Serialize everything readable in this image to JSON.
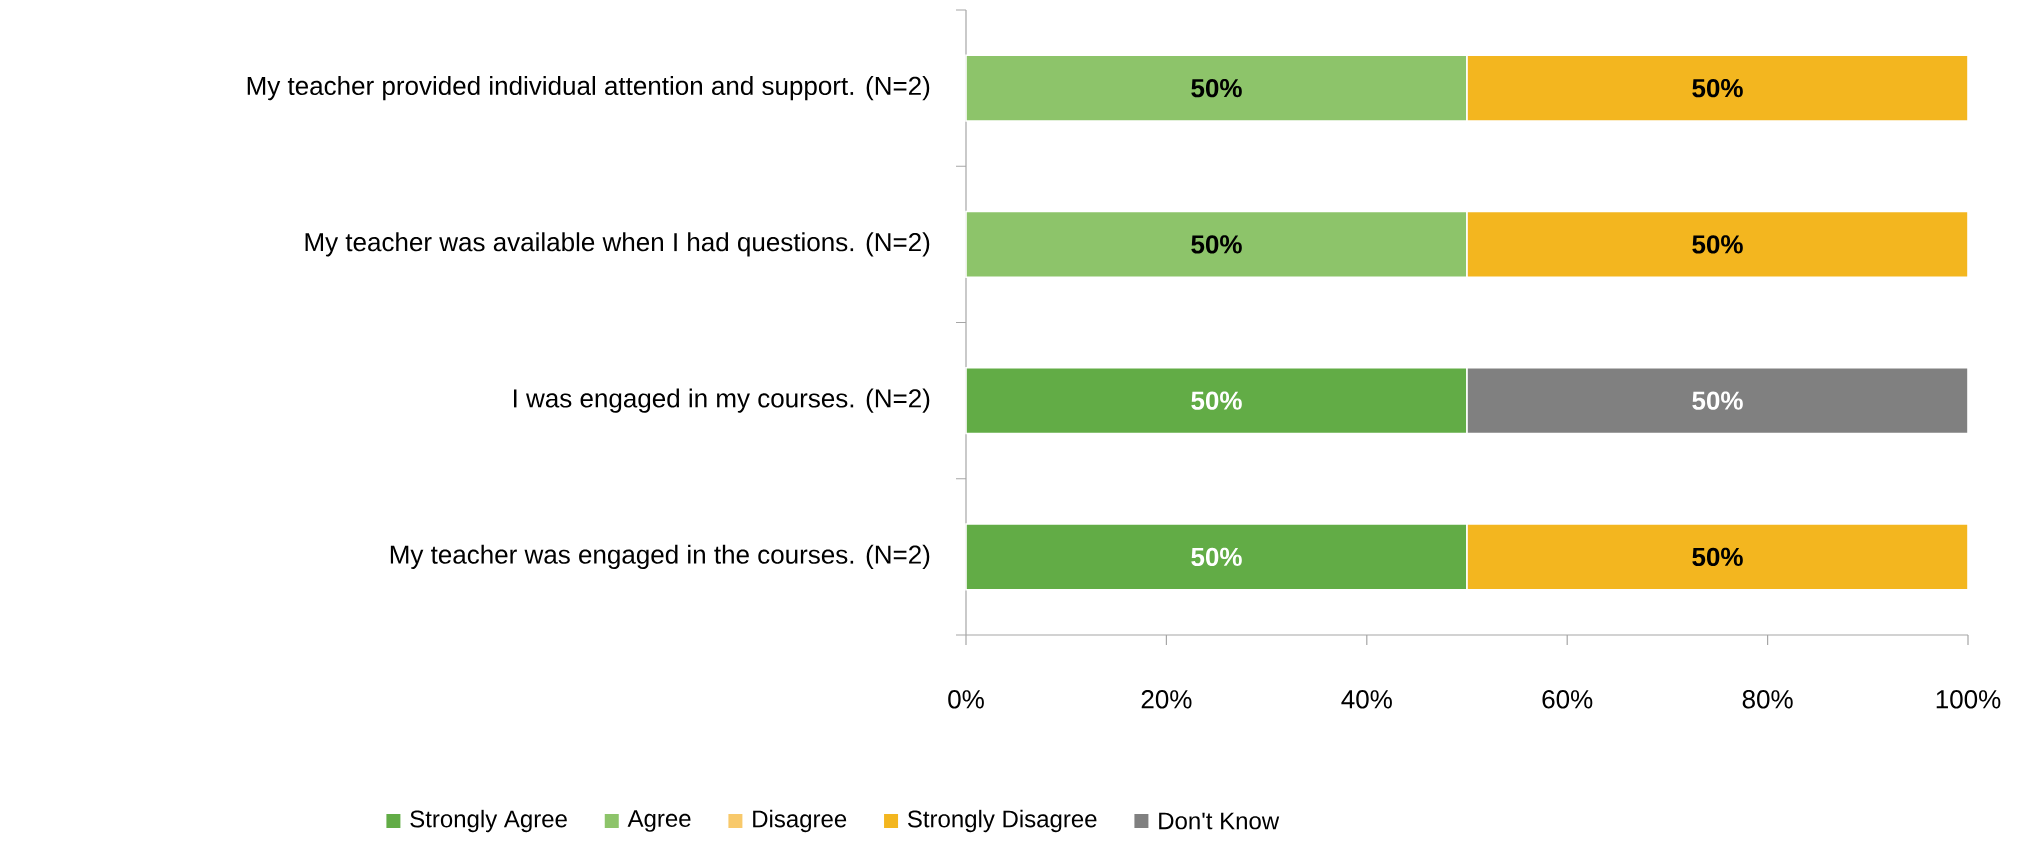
{
  "chart_data": {
    "type": "bar",
    "orientation": "horizontal",
    "stacked": true,
    "legend": "bottom",
    "grid": false,
    "categories": [
      "My teacher provided individual attention and support. (N=2)",
      "My teacher was available when I had questions. (N=2)",
      "I was engaged in my courses. (N=2)",
      "My teacher was engaged in the courses. (N=2)"
    ],
    "series": [
      {
        "name": "Strongly Agree",
        "color": "#62ac46",
        "values": [
          null,
          null,
          50,
          50
        ],
        "value_labels": [
          null,
          null,
          "50%",
          "50%"
        ]
      },
      {
        "name": "Agree",
        "color": "#8dc46a",
        "values": [
          50,
          50,
          null,
          null
        ],
        "value_labels": [
          "50%",
          "50%",
          null,
          null
        ]
      },
      {
        "name": "Disagree",
        "color": "#f8c96b",
        "values": [
          null,
          null,
          null,
          null
        ],
        "value_labels": [
          null,
          null,
          null,
          null
        ]
      },
      {
        "name": "Strongly Disagree",
        "color": "#f3b61f",
        "values": [
          50,
          50,
          null,
          50
        ],
        "value_labels": [
          "50%",
          "50%",
          null,
          "50%"
        ]
      },
      {
        "name": "Don't Know",
        "color": "#808080",
        "values": [
          null,
          null,
          50,
          null
        ],
        "value_labels": [
          null,
          null,
          "50%",
          null
        ]
      }
    ],
    "xlim": [
      0,
      100
    ],
    "xticks": [
      {
        "value": 0,
        "label": "0%"
      },
      {
        "value": 20,
        "label": "20%"
      },
      {
        "value": 40,
        "label": "40%"
      },
      {
        "value": 60,
        "label": "60%"
      },
      {
        "value": 80,
        "label": "80%"
      },
      {
        "value": 100,
        "label": "100%"
      }
    ]
  }
}
